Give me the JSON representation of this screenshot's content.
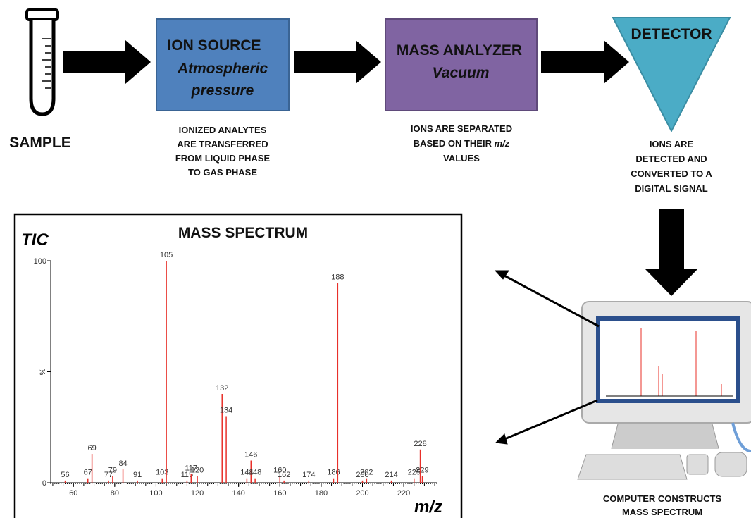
{
  "sample": {
    "label": "SAMPLE"
  },
  "ion_source": {
    "title": "ION SOURCE",
    "subtitle": [
      "Atmospheric",
      "pressure"
    ],
    "caption": [
      "IONIZED ANALYTES",
      "ARE TRANSFERRED",
      "FROM LIQUID PHASE",
      "TO GAS PHASE"
    ]
  },
  "mass_analyzer": {
    "title": "MASS ANALYZER",
    "subtitle": [
      "Vacuum"
    ],
    "caption": [
      "IONS ARE SEPARATED",
      "BASED ON THEIR",
      "VALUES"
    ],
    "caption_em": "m/z"
  },
  "detector": {
    "title": "DETECTOR",
    "caption": [
      "IONS ARE",
      "DETECTED AND",
      "CONVERTED TO A",
      "DIGITAL SIGNAL"
    ]
  },
  "computer": {
    "caption": [
      "COMPUTER CONSTRUCTS",
      "MASS SPECTRUM"
    ]
  },
  "chart_data": {
    "type": "stem",
    "title": "MASS SPECTRUM",
    "y_label": "TIC",
    "y_unit": "%",
    "x_label": "m/z",
    "x": [
      56,
      67,
      69,
      77,
      79,
      84,
      91,
      103,
      105,
      115,
      117,
      120,
      132,
      134,
      144,
      146,
      148,
      160,
      162,
      174,
      186,
      188,
      200,
      202,
      214,
      225,
      228,
      229
    ],
    "values": [
      1,
      2,
      13,
      1,
      3,
      6,
      1,
      2,
      100,
      1,
      4,
      3,
      40,
      30,
      2,
      10,
      2,
      3,
      1,
      1,
      2,
      90,
      1,
      2,
      1,
      2,
      15,
      3
    ],
    "color": "#e8302a",
    "xlim": [
      49,
      236
    ],
    "xticks": [
      60,
      80,
      100,
      120,
      140,
      160,
      180,
      200,
      220
    ],
    "ylim": [
      0,
      100
    ],
    "yticks": [
      0,
      100
    ]
  }
}
